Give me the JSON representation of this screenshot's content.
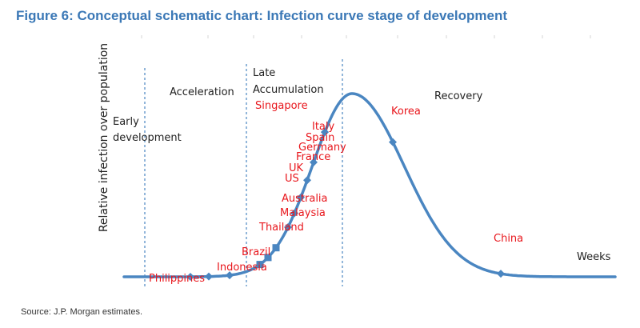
{
  "figure": {
    "title": "Figure 6: Conceptual schematic chart: Infection curve stage of development",
    "source": "Source: J.P. Morgan estimates."
  },
  "colors": {
    "title": "#3b78b6",
    "curve": "#4a86c1",
    "country_labels": "#e8161c",
    "stage_dividers": "#4a86c1"
  },
  "chart_data": {
    "type": "line",
    "title": "Figure 6: Conceptual schematic chart: Infection curve stage of development",
    "xlabel": "Weeks",
    "ylabel": "Relative infection over population",
    "conceptual": true,
    "stages": [
      {
        "label_lines": [
          "Early",
          "development"
        ]
      },
      {
        "label_lines": [
          "Acceleration"
        ]
      },
      {
        "label_lines": [
          "Late",
          "Accumulation"
        ]
      },
      {
        "label_lines": [
          "Recovery"
        ]
      }
    ],
    "stage_dividers": 3,
    "markers": [
      {
        "label": "Philippines",
        "shape": "diamond"
      },
      {
        "label": "Indonesia",
        "shape": "diamond"
      },
      {
        "label": "Brazil",
        "shape": "diamond"
      },
      {
        "label": "Thailand",
        "shape": "square"
      },
      {
        "label": "Malaysia",
        "shape": "square"
      },
      {
        "label": "Australia",
        "shape": "square"
      },
      {
        "label": "US",
        "shape": "diamond"
      },
      {
        "label": "UK",
        "shape": "diamond"
      },
      {
        "label": "France",
        "shape": "diamond"
      },
      {
        "label": "Germany",
        "shape": "diamond"
      },
      {
        "label": "Spain",
        "shape": "diamond"
      },
      {
        "label": "Italy",
        "shape": "diamond"
      },
      {
        "label": "Singapore",
        "shape": "diamond"
      },
      {
        "label": "Korea",
        "shape": "diamond"
      },
      {
        "label": "China",
        "shape": "diamond"
      }
    ]
  }
}
